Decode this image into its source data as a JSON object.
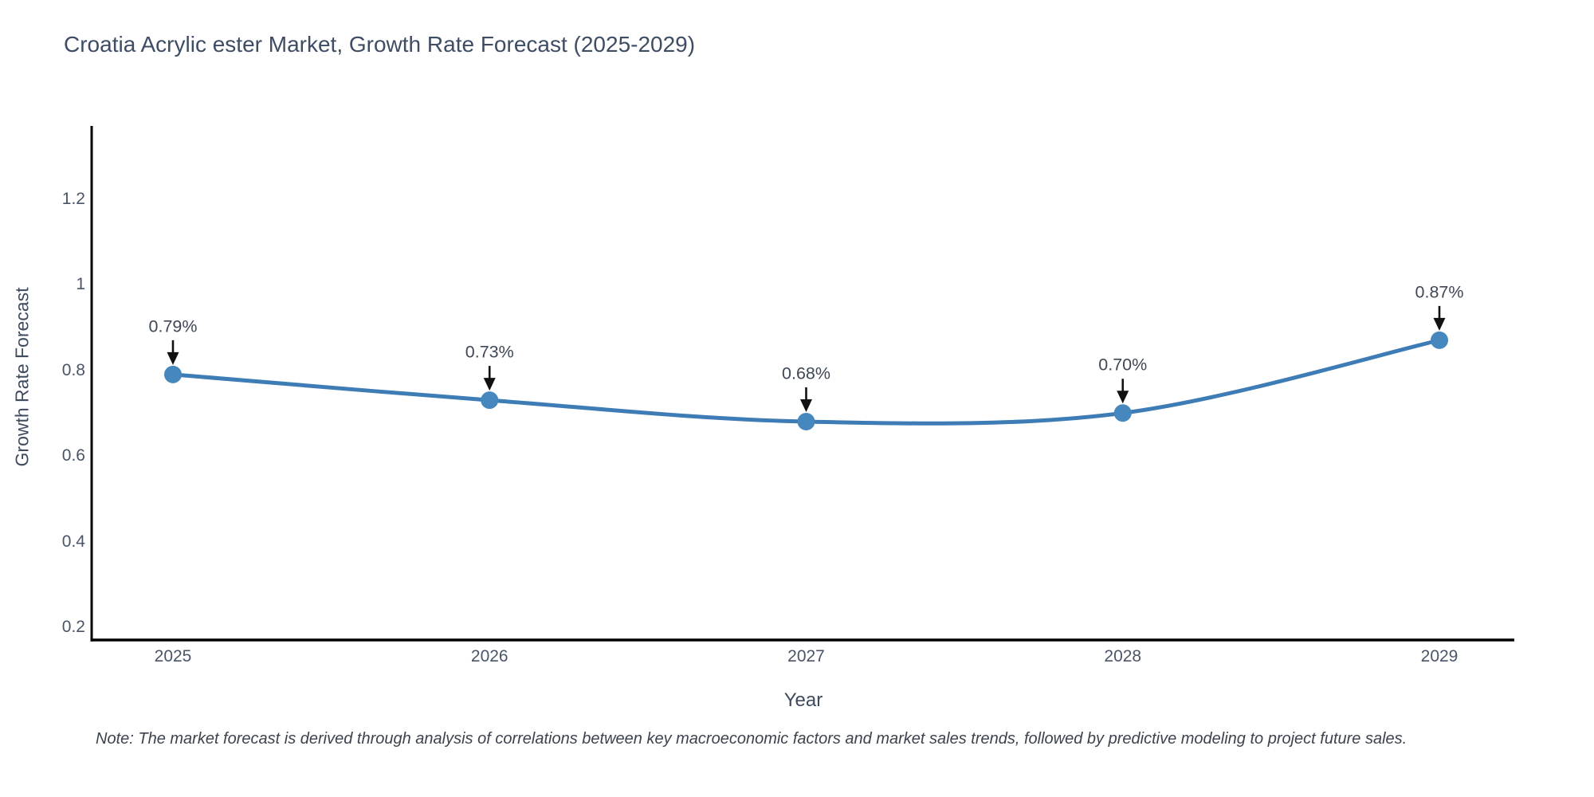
{
  "note": "Note: The market forecast is derived through analysis of correlations between key macroeconomic factors and market sales trends, followed by predictive modeling to project future sales.",
  "chart_data": {
    "type": "line",
    "title": "Croatia Acrylic ester Market, Growth Rate Forecast (2025-2029)",
    "xlabel": "Year",
    "ylabel": "Growth Rate Forecast",
    "categories": [
      "2025",
      "2026",
      "2027",
      "2028",
      "2029"
    ],
    "x": [
      2025,
      2026,
      2027,
      2028,
      2029
    ],
    "series": [
      {
        "name": "Growth Rate Forecast",
        "values": [
          0.79,
          0.73,
          0.68,
          0.7,
          0.87
        ]
      }
    ],
    "point_labels": [
      "0.79%",
      "0.73%",
      "0.68%",
      "0.70%",
      "0.87%"
    ],
    "y_ticks": [
      0.2,
      0.4,
      0.6,
      0.8,
      1,
      1.2
    ],
    "y_tick_labels": [
      "0.2",
      "0.4",
      "0.6",
      "0.8",
      "1",
      "1.2"
    ],
    "ylim": [
      0.17,
      1.37
    ],
    "grid": false,
    "legend": "none",
    "line_shape": "spline",
    "annotation_style": "text above point with downward black arrow",
    "colors": {
      "line": "#3d7cb5",
      "marker": "#4687bd",
      "arrow": "#111111",
      "axis": "#000000",
      "title_text": "#3e4c64",
      "axis_label_text": "#3e4a5e",
      "tick_text": "#4a5568",
      "annotation_text": "#3f4855",
      "note_text": "#3c434e",
      "background": "#ffffff"
    }
  }
}
